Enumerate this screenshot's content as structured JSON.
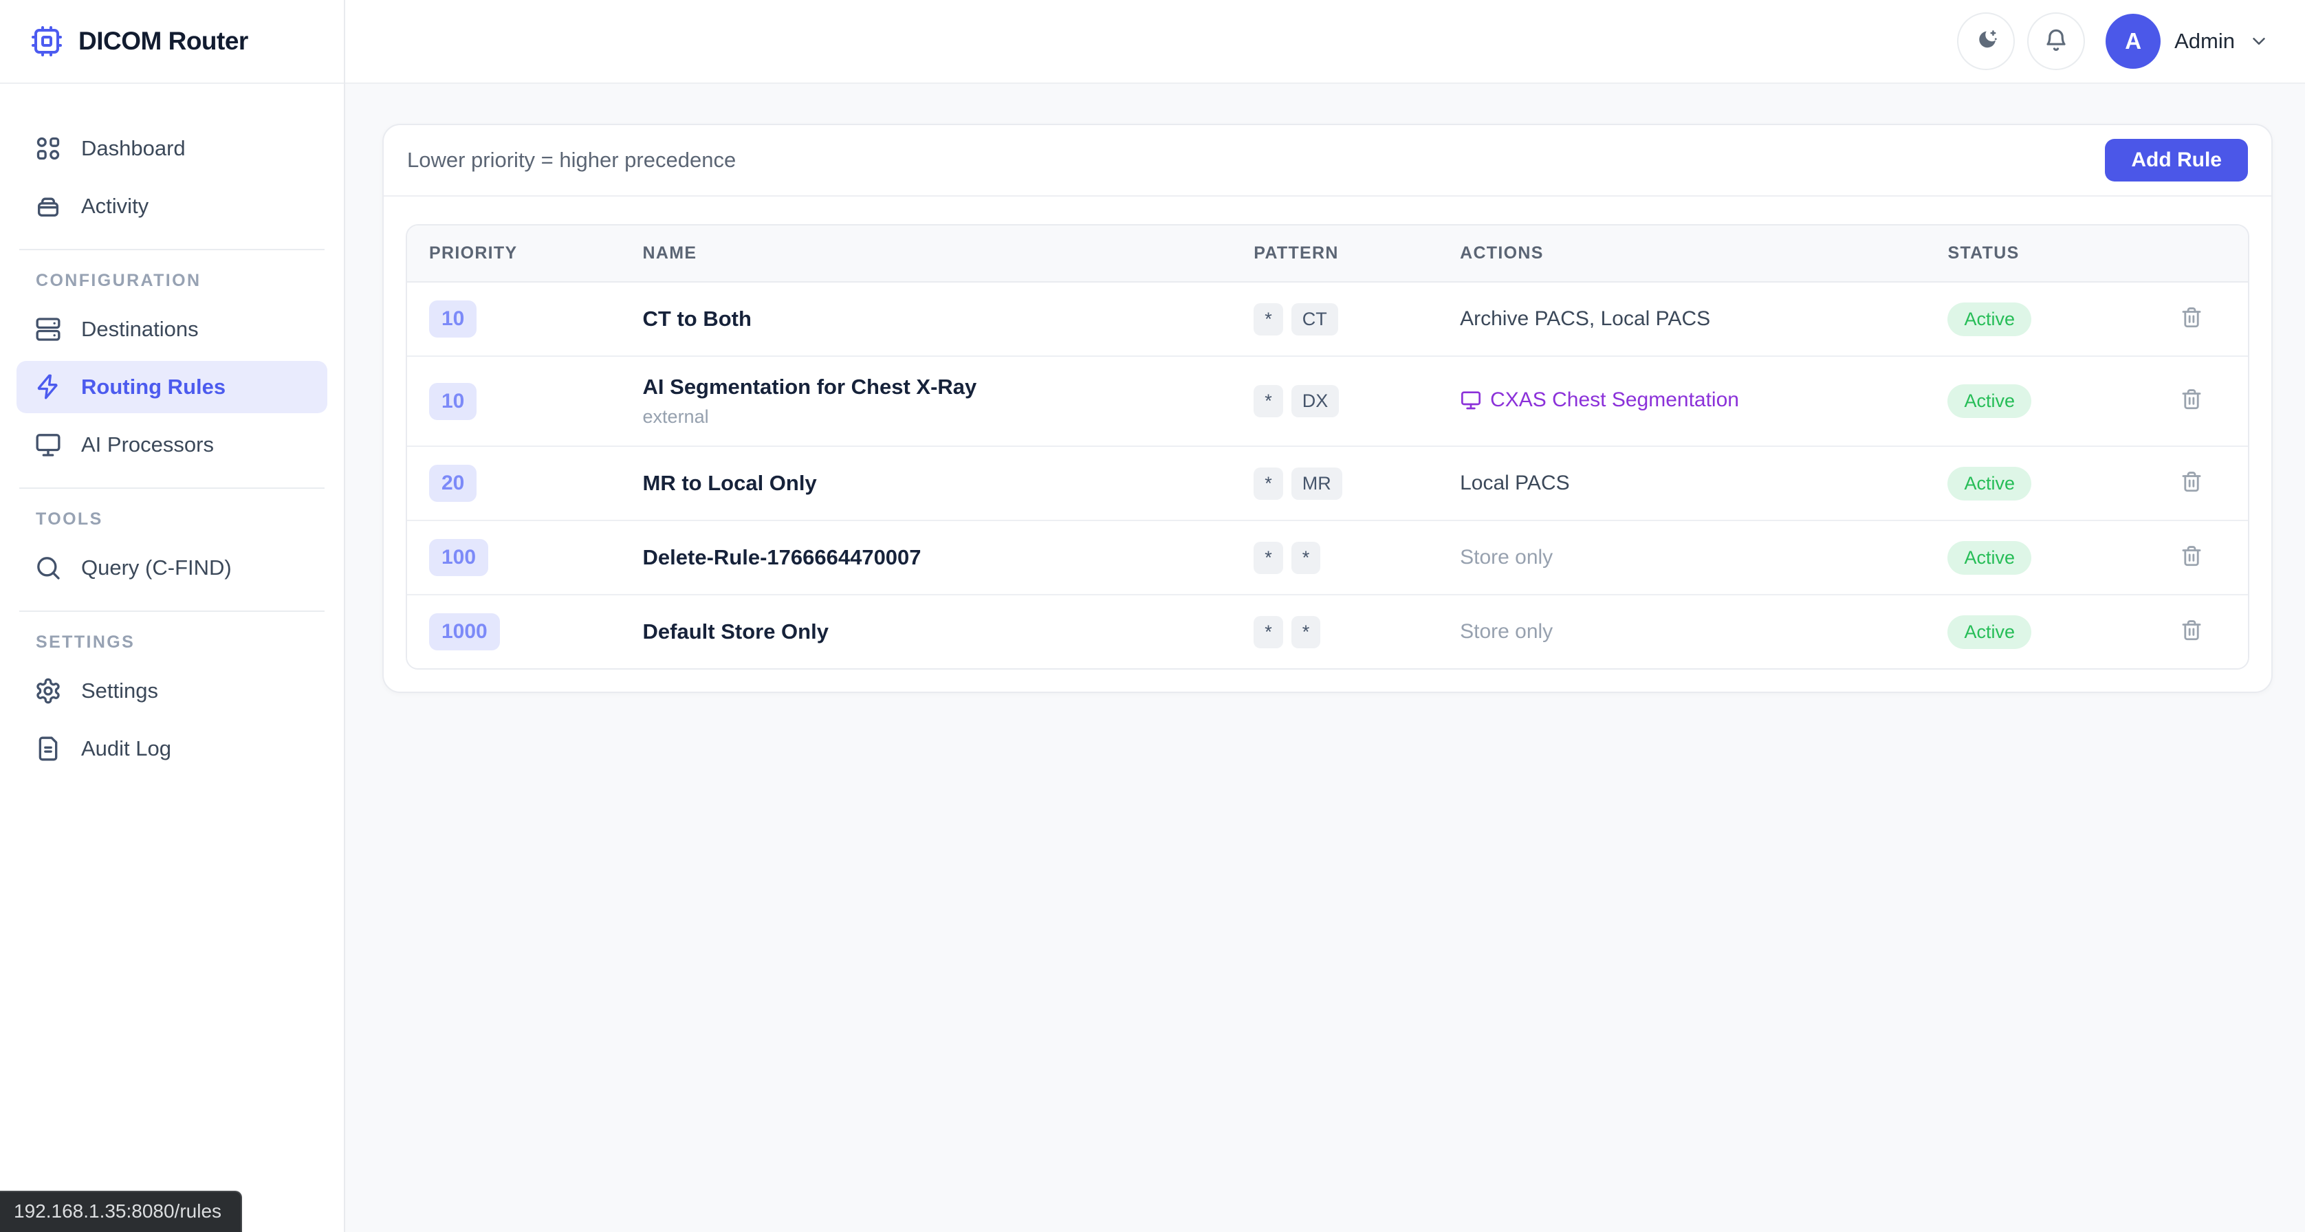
{
  "app": {
    "title": "DICOM Router"
  },
  "header": {
    "user": {
      "initial": "A",
      "name": "Admin"
    }
  },
  "sidebar": {
    "sections": [
      {
        "label": "",
        "items": [
          {
            "icon": "dashboard",
            "label": "Dashboard",
            "active": false
          },
          {
            "icon": "activity",
            "label": "Activity",
            "active": false
          }
        ]
      },
      {
        "label": "CONFIGURATION",
        "items": [
          {
            "icon": "server",
            "label": "Destinations",
            "active": false
          },
          {
            "icon": "zap",
            "label": "Routing Rules",
            "active": true
          },
          {
            "icon": "monitor",
            "label": "AI Processors",
            "active": false
          }
        ]
      },
      {
        "label": "TOOLS",
        "items": [
          {
            "icon": "search",
            "label": "Query (C-FIND)",
            "active": false
          }
        ]
      },
      {
        "label": "SETTINGS",
        "items": [
          {
            "icon": "settings",
            "label": "Settings",
            "active": false
          },
          {
            "icon": "file-text",
            "label": "Audit Log",
            "active": false
          }
        ]
      }
    ]
  },
  "page": {
    "hint": "Lower priority = higher precedence",
    "add_rule_label": "Add Rule"
  },
  "table": {
    "columns": [
      "PRIORITY",
      "NAME",
      "PATTERN",
      "ACTIONS",
      "STATUS"
    ],
    "rows": [
      {
        "priority": "10",
        "name": "CT to Both",
        "subtitle": "",
        "pattern": [
          "*",
          "CT"
        ],
        "action": {
          "type": "destinations",
          "label": "Archive PACS, Local PACS"
        },
        "status": "Active"
      },
      {
        "priority": "10",
        "name": "AI Segmentation for Chest X-Ray",
        "subtitle": "external",
        "pattern": [
          "*",
          "DX"
        ],
        "action": {
          "type": "ai",
          "label": "CXAS Chest Segmentation"
        },
        "status": "Active"
      },
      {
        "priority": "20",
        "name": "MR to Local Only",
        "subtitle": "",
        "pattern": [
          "*",
          "MR"
        ],
        "action": {
          "type": "destinations",
          "label": "Local PACS"
        },
        "status": "Active"
      },
      {
        "priority": "100",
        "name": "Delete-Rule-1766664470007",
        "subtitle": "",
        "pattern": [
          "*",
          "*"
        ],
        "action": {
          "type": "store",
          "label": "Store only"
        },
        "status": "Active"
      },
      {
        "priority": "1000",
        "name": "Default Store Only",
        "subtitle": "",
        "pattern": [
          "*",
          "*"
        ],
        "action": {
          "type": "store",
          "label": "Store only"
        },
        "status": "Active"
      }
    ]
  },
  "statusbar": {
    "url": "192.168.1.35:8080/rules"
  },
  "colors": {
    "accent_indigo": "#4b57e8",
    "active_nav_bg": "#e9ebfd",
    "priority_badge_bg": "#e4e7fd",
    "priority_badge_text": "#7c8af8",
    "status_active_bg": "#def6e7",
    "status_active_text": "#26bd57",
    "ai_link_purple": "#8b31d9",
    "page_bg": "#f8f9fb"
  }
}
